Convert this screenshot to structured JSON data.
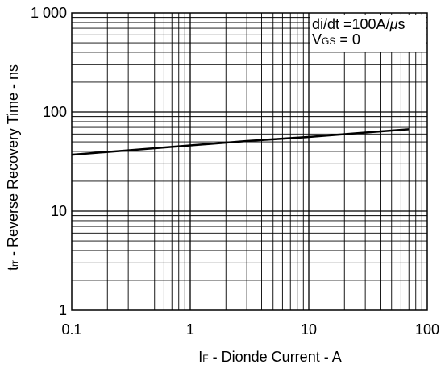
{
  "chart_data": {
    "type": "line",
    "title": "",
    "x_axis": {
      "label_main": "I",
      "label_sub": "F",
      "label_rest": " - Dionde Current   - A",
      "scale": "log",
      "range": [
        0.1,
        100
      ],
      "tick_labels": [
        "0.1",
        "1",
        "10",
        "100"
      ],
      "tick_values": [
        0.1,
        1,
        10,
        100
      ]
    },
    "y_axis": {
      "label_main": "t",
      "label_sub": "rr",
      "label_rest": "  - Reverse Recovery Time  - ns",
      "scale": "log",
      "range": [
        1,
        1000
      ],
      "tick_labels": [
        "1",
        "10",
        "100",
        "1 000"
      ],
      "tick_values": [
        1,
        10,
        100,
        1000
      ]
    },
    "grid": true,
    "series": [
      {
        "name": "",
        "color": "#000000",
        "x": [
          0.1,
          0.3,
          1,
          3,
          10,
          30,
          70
        ],
        "y": [
          37,
          41,
          46,
          51,
          56,
          62,
          67
        ]
      }
    ],
    "annotations": {
      "line1": "di/dt =100A/",
      "mu": "μ",
      "line1_end": "s",
      "line2_main": "V",
      "line2_sub": "GS",
      "line2_rest": " = 0"
    }
  }
}
